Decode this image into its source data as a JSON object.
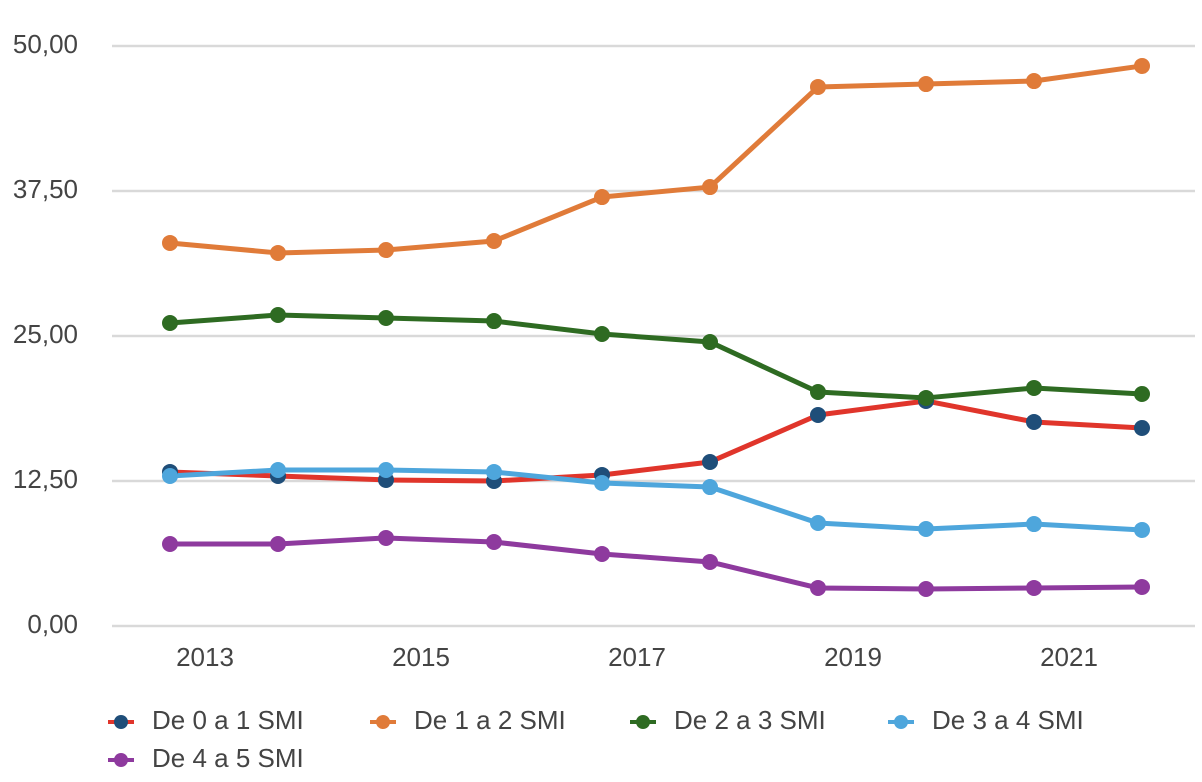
{
  "chart_data": {
    "type": "line",
    "categories": [
      "2013",
      null,
      "2015",
      null,
      "2017",
      null,
      "2019",
      null,
      "2021",
      null
    ],
    "series": [
      {
        "name": "De 0 a 1 SMI",
        "color": "#1f4e79",
        "line_color": "#e0352b",
        "values": [
          13.28,
          12.93,
          12.59,
          12.5,
          13.02,
          14.14,
          18.19,
          19.4,
          17.59,
          17.07
        ]
      },
      {
        "name": "De 1 a 2 SMI",
        "color": "#e07b39",
        "values": [
          33.02,
          32.16,
          32.41,
          33.19,
          36.98,
          37.84,
          46.47,
          46.72,
          46.98,
          48.28
        ]
      },
      {
        "name": "De 2 a 3 SMI",
        "color": "#2e6b22",
        "values": [
          26.12,
          26.81,
          26.55,
          26.29,
          25.17,
          24.48,
          20.17,
          19.66,
          20.52,
          20.0
        ]
      },
      {
        "name": "De 3 a 4 SMI",
        "color": "#4ea6dc",
        "values": [
          12.93,
          13.45,
          13.45,
          13.28,
          12.33,
          11.98,
          8.88,
          8.36,
          8.79,
          8.28
        ]
      },
      {
        "name": "De 4 a 5 SMI",
        "color": "#8e3a9e",
        "values": [
          7.07,
          7.07,
          7.59,
          7.24,
          6.21,
          5.52,
          3.28,
          3.19,
          3.28,
          3.36
        ]
      }
    ],
    "ylim": [
      0,
      50
    ],
    "yticks": [
      {
        "value": 0,
        "label": "0,00"
      },
      {
        "value": 12.5,
        "label": "12,50"
      },
      {
        "value": 25,
        "label": "25,00"
      },
      {
        "value": 37.5,
        "label": "37,50"
      },
      {
        "value": 50,
        "label": "50,00"
      }
    ],
    "grid": true
  }
}
